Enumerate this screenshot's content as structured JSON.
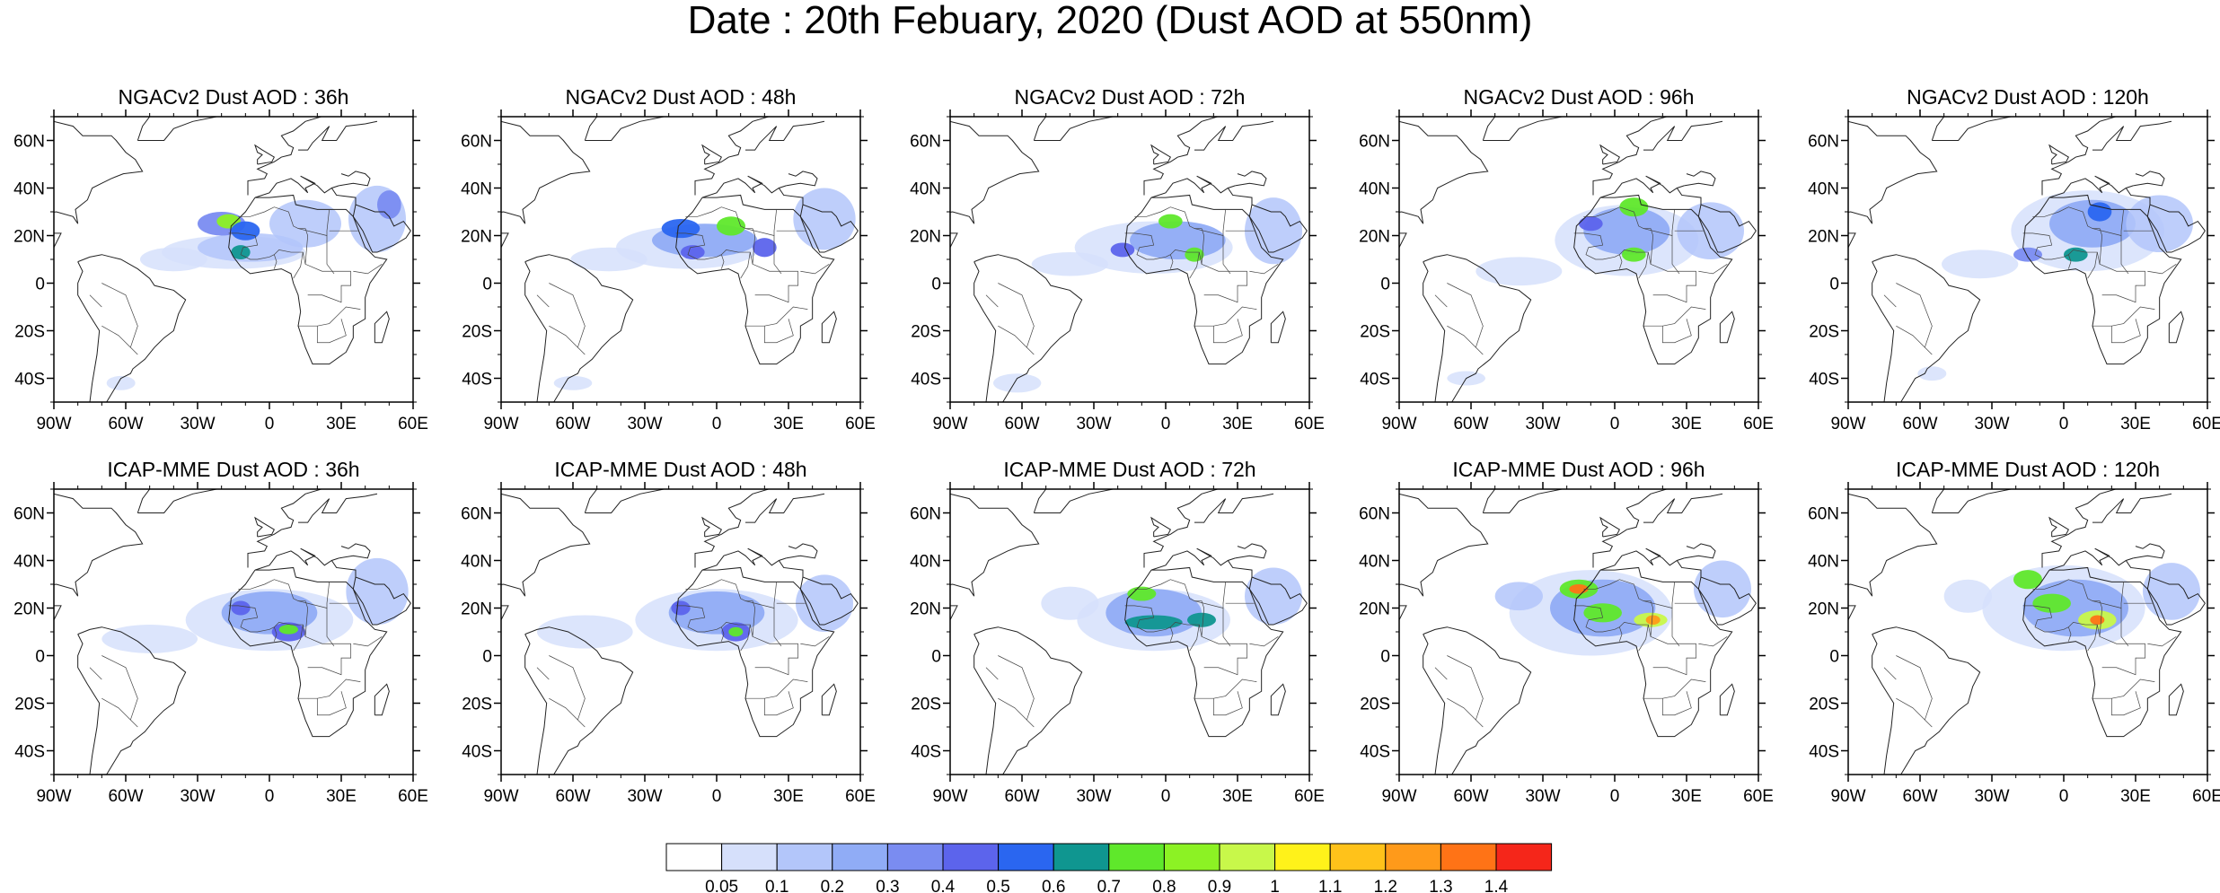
{
  "title": "Date : 20th Febuary, 2020 (Dust AOD at 550nm)",
  "rows": [
    {
      "model": "NGACv2",
      "panels": [
        {
          "title": "NGACv2 Dust AOD : 36h",
          "plumes": [
            {
              "lon": -15,
              "lat": 13,
              "rx": 30,
              "ry": 7,
              "level": 1
            },
            {
              "lon": -8,
              "lat": 15,
              "rx": 22,
              "ry": 6,
              "level": 2
            },
            {
              "lon": -20,
              "lat": 25,
              "rx": 10,
              "ry": 5,
              "level": 4
            },
            {
              "lon": -17,
              "lat": 26,
              "rx": 5,
              "ry": 3,
              "level": 9
            },
            {
              "lon": -10,
              "lat": 22,
              "rx": 6,
              "ry": 4,
              "level": 6
            },
            {
              "lon": -12,
              "lat": 13,
              "rx": 4,
              "ry": 3,
              "level": 7
            },
            {
              "lon": 45,
              "lat": 27,
              "rx": 12,
              "ry": 14,
              "level": 2
            },
            {
              "lon": 50,
              "lat": 33,
              "rx": 5,
              "ry": 6,
              "level": 4
            },
            {
              "lon": -40,
              "lat": 10,
              "rx": 14,
              "ry": 5,
              "level": 1
            },
            {
              "lon": 15,
              "lat": 25,
              "rx": 15,
              "ry": 10,
              "level": 2
            },
            {
              "lon": -62,
              "lat": -42,
              "rx": 6,
              "ry": 3,
              "level": 1
            }
          ]
        },
        {
          "title": "NGACv2 Dust AOD : 48h",
          "plumes": [
            {
              "lon": -12,
              "lat": 15,
              "rx": 30,
              "ry": 9,
              "level": 1
            },
            {
              "lon": -5,
              "lat": 18,
              "rx": 22,
              "ry": 7,
              "level": 3
            },
            {
              "lon": -15,
              "lat": 23,
              "rx": 8,
              "ry": 4,
              "level": 6
            },
            {
              "lon": 6,
              "lat": 24,
              "rx": 6,
              "ry": 4,
              "level": 8
            },
            {
              "lon": -10,
              "lat": 13,
              "rx": 5,
              "ry": 3,
              "level": 5
            },
            {
              "lon": 20,
              "lat": 15,
              "rx": 5,
              "ry": 4,
              "level": 5
            },
            {
              "lon": 45,
              "lat": 27,
              "rx": 13,
              "ry": 13,
              "level": 2
            },
            {
              "lon": -45,
              "lat": 10,
              "rx": 16,
              "ry": 5,
              "level": 1
            },
            {
              "lon": -60,
              "lat": -42,
              "rx": 8,
              "ry": 3,
              "level": 1
            }
          ]
        },
        {
          "title": "NGACv2 Dust AOD : 72h",
          "plumes": [
            {
              "lon": -5,
              "lat": 15,
              "rx": 33,
              "ry": 11,
              "level": 1
            },
            {
              "lon": 5,
              "lat": 18,
              "rx": 20,
              "ry": 8,
              "level": 3
            },
            {
              "lon": 2,
              "lat": 26,
              "rx": 5,
              "ry": 3,
              "level": 8
            },
            {
              "lon": 12,
              "lat": 12,
              "rx": 4,
              "ry": 3,
              "level": 8
            },
            {
              "lon": -18,
              "lat": 14,
              "rx": 5,
              "ry": 3,
              "level": 5
            },
            {
              "lon": 45,
              "lat": 22,
              "rx": 12,
              "ry": 14,
              "level": 2
            },
            {
              "lon": -40,
              "lat": 8,
              "rx": 16,
              "ry": 5,
              "level": 1
            },
            {
              "lon": -62,
              "lat": -42,
              "rx": 10,
              "ry": 4,
              "level": 1
            }
          ]
        },
        {
          "title": "NGACv2 Dust AOD : 96h",
          "plumes": [
            {
              "lon": 5,
              "lat": 18,
              "rx": 30,
              "ry": 15,
              "level": 1
            },
            {
              "lon": 5,
              "lat": 22,
              "rx": 18,
              "ry": 10,
              "level": 3
            },
            {
              "lon": 8,
              "lat": 32,
              "rx": 6,
              "ry": 4,
              "level": 8
            },
            {
              "lon": 8,
              "lat": 12,
              "rx": 5,
              "ry": 3,
              "level": 8
            },
            {
              "lon": -10,
              "lat": 25,
              "rx": 5,
              "ry": 3,
              "level": 5
            },
            {
              "lon": 40,
              "lat": 22,
              "rx": 14,
              "ry": 12,
              "level": 2
            },
            {
              "lon": -40,
              "lat": 5,
              "rx": 18,
              "ry": 6,
              "level": 1
            },
            {
              "lon": -62,
              "lat": -40,
              "rx": 8,
              "ry": 3,
              "level": 1
            }
          ]
        },
        {
          "title": "NGACv2 Dust AOD : 120h",
          "plumes": [
            {
              "lon": 10,
              "lat": 22,
              "rx": 32,
              "ry": 17,
              "level": 1
            },
            {
              "lon": 12,
              "lat": 25,
              "rx": 18,
              "ry": 10,
              "level": 3
            },
            {
              "lon": 15,
              "lat": 30,
              "rx": 5,
              "ry": 4,
              "level": 6
            },
            {
              "lon": 5,
              "lat": 12,
              "rx": 5,
              "ry": 3,
              "level": 7
            },
            {
              "lon": -15,
              "lat": 12,
              "rx": 6,
              "ry": 3,
              "level": 4
            },
            {
              "lon": 40,
              "lat": 25,
              "rx": 14,
              "ry": 12,
              "level": 2
            },
            {
              "lon": -35,
              "lat": 8,
              "rx": 16,
              "ry": 6,
              "level": 1
            },
            {
              "lon": -55,
              "lat": -38,
              "rx": 6,
              "ry": 3,
              "level": 1
            }
          ]
        }
      ]
    },
    {
      "model": "ICAP-MME",
      "panels": [
        {
          "title": "ICAP-MME Dust AOD : 36h",
          "plumes": [
            {
              "lon": 0,
              "lat": 15,
              "rx": 35,
              "ry": 13,
              "level": 1
            },
            {
              "lon": 0,
              "lat": 18,
              "rx": 20,
              "ry": 9,
              "level": 3
            },
            {
              "lon": 8,
              "lat": 10,
              "rx": 7,
              "ry": 4,
              "level": 5
            },
            {
              "lon": 8,
              "lat": 11,
              "rx": 4,
              "ry": 2,
              "level": 8
            },
            {
              "lon": -12,
              "lat": 20,
              "rx": 4,
              "ry": 3,
              "level": 5
            },
            {
              "lon": 45,
              "lat": 27,
              "rx": 13,
              "ry": 14,
              "level": 2
            },
            {
              "lon": -50,
              "lat": 7,
              "rx": 20,
              "ry": 6,
              "level": 1
            }
          ]
        },
        {
          "title": "ICAP-MME Dust AOD : 48h",
          "plumes": [
            {
              "lon": 0,
              "lat": 15,
              "rx": 34,
              "ry": 13,
              "level": 1
            },
            {
              "lon": 0,
              "lat": 18,
              "rx": 20,
              "ry": 9,
              "level": 3
            },
            {
              "lon": 8,
              "lat": 10,
              "rx": 6,
              "ry": 4,
              "level": 5
            },
            {
              "lon": 8,
              "lat": 10,
              "rx": 3,
              "ry": 2,
              "level": 8
            },
            {
              "lon": -15,
              "lat": 20,
              "rx": 4,
              "ry": 3,
              "level": 5
            },
            {
              "lon": 45,
              "lat": 22,
              "rx": 12,
              "ry": 12,
              "level": 2
            },
            {
              "lon": -55,
              "lat": 10,
              "rx": 20,
              "ry": 7,
              "level": 1
            }
          ]
        },
        {
          "title": "ICAP-MME Dust AOD : 72h",
          "plumes": [
            {
              "lon": -5,
              "lat": 15,
              "rx": 32,
              "ry": 13,
              "level": 1
            },
            {
              "lon": -5,
              "lat": 18,
              "rx": 20,
              "ry": 10,
              "level": 3
            },
            {
              "lon": -10,
              "lat": 26,
              "rx": 6,
              "ry": 3,
              "level": 8
            },
            {
              "lon": -5,
              "lat": 14,
              "rx": 12,
              "ry": 3,
              "level": 7
            },
            {
              "lon": 15,
              "lat": 15,
              "rx": 6,
              "ry": 3,
              "level": 7
            },
            {
              "lon": 45,
              "lat": 25,
              "rx": 12,
              "ry": 12,
              "level": 2
            },
            {
              "lon": -40,
              "lat": 22,
              "rx": 12,
              "ry": 7,
              "level": 1
            }
          ]
        },
        {
          "title": "ICAP-MME Dust AOD : 96h",
          "plumes": [
            {
              "lon": -10,
              "lat": 18,
              "rx": 34,
              "ry": 18,
              "level": 1
            },
            {
              "lon": -5,
              "lat": 20,
              "rx": 22,
              "ry": 12,
              "level": 3
            },
            {
              "lon": -15,
              "lat": 28,
              "rx": 8,
              "ry": 4,
              "level": 8
            },
            {
              "lon": -15,
              "lat": 28,
              "rx": 4,
              "ry": 2,
              "level": 14
            },
            {
              "lon": -5,
              "lat": 18,
              "rx": 8,
              "ry": 4,
              "level": 8
            },
            {
              "lon": 15,
              "lat": 15,
              "rx": 7,
              "ry": 3,
              "level": 10
            },
            {
              "lon": 16,
              "lat": 15,
              "rx": 3,
              "ry": 2,
              "level": 13
            },
            {
              "lon": 45,
              "lat": 28,
              "rx": 12,
              "ry": 12,
              "level": 2
            },
            {
              "lon": -40,
              "lat": 25,
              "rx": 10,
              "ry": 6,
              "level": 2
            }
          ]
        },
        {
          "title": "ICAP-MME Dust AOD : 120h",
          "plumes": [
            {
              "lon": 0,
              "lat": 20,
              "rx": 34,
              "ry": 18,
              "level": 1
            },
            {
              "lon": 5,
              "lat": 20,
              "rx": 22,
              "ry": 12,
              "level": 3
            },
            {
              "lon": -15,
              "lat": 32,
              "rx": 6,
              "ry": 4,
              "level": 8
            },
            {
              "lon": -5,
              "lat": 22,
              "rx": 8,
              "ry": 4,
              "level": 8
            },
            {
              "lon": 14,
              "lat": 15,
              "rx": 8,
              "ry": 4,
              "level": 10
            },
            {
              "lon": 14,
              "lat": 15,
              "rx": 3,
              "ry": 2,
              "level": 14
            },
            {
              "lon": 45,
              "lat": 27,
              "rx": 12,
              "ry": 12,
              "level": 2
            },
            {
              "lon": -40,
              "lat": 25,
              "rx": 10,
              "ry": 7,
              "level": 1
            }
          ]
        }
      ]
    }
  ],
  "axis": {
    "lon_ticks": [
      "90W",
      "60W",
      "30W",
      "0",
      "30E",
      "60E"
    ],
    "lon_values": [
      -90,
      -60,
      -30,
      0,
      30,
      60
    ],
    "lat_ticks": [
      "60N",
      "40N",
      "20N",
      "0",
      "20S",
      "40S"
    ],
    "lat_values": [
      60,
      40,
      20,
      0,
      -20,
      -40
    ],
    "lon_range": [
      -90,
      60
    ],
    "lat_range": [
      -50,
      70
    ]
  },
  "colorbar": {
    "labels": [
      "0.05",
      "0.1",
      "0.2",
      "0.3",
      "0.4",
      "0.5",
      "0.6",
      "0.7",
      "0.8",
      "0.9",
      "1",
      "1.1",
      "1.2",
      "1.3",
      "1.4"
    ],
    "colors": [
      "#ffffff",
      "#d6e0fb",
      "#b3c6fa",
      "#90acf6",
      "#7a8cf1",
      "#5c64ec",
      "#2a66f0",
      "#0f9690",
      "#5fe82b",
      "#8cf224",
      "#c8f84a",
      "#fff21a",
      "#ffc21a",
      "#ff9a1a",
      "#ff7316",
      "#f5261a"
    ]
  }
}
